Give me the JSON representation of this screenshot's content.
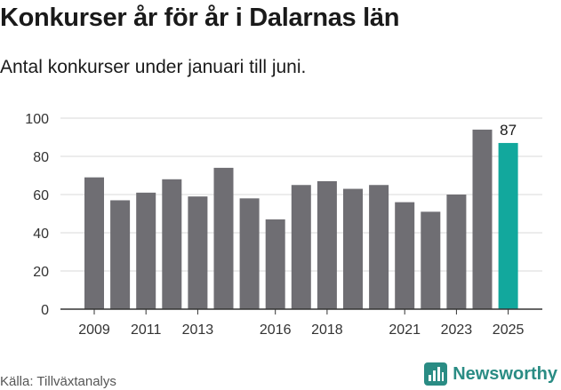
{
  "header": {
    "title": "Konkurser år för år i Dalarnas län",
    "subtitle": "Antal konkurser under januari till juni."
  },
  "footer": {
    "source": "Källa: Tillväxtanalys",
    "brand": "Newsworthy"
  },
  "colors": {
    "bar": "#6f6e73",
    "highlight": "#12a89d",
    "brand": "#2a8c84"
  },
  "icons": {
    "brand_logo": "newsworthy-logo-icon"
  },
  "chart_data": {
    "type": "bar",
    "categories": [
      "2009",
      "2010",
      "2011",
      "2012",
      "2013",
      "2014",
      "2015",
      "2016",
      "2017",
      "2018",
      "2019",
      "2020",
      "2021",
      "2022",
      "2023",
      "2024",
      "2025"
    ],
    "tick_labels": [
      "2009",
      "",
      "2011",
      "",
      "2013",
      "",
      "",
      "2016",
      "",
      "2018",
      "",
      "",
      "2021",
      "",
      "2023",
      "",
      "2025"
    ],
    "values": [
      69,
      57,
      61,
      68,
      59,
      74,
      58,
      47,
      65,
      67,
      63,
      65,
      56,
      51,
      60,
      94,
      87
    ],
    "highlight_index": 16,
    "data_labels": [
      {
        "index": 16,
        "text": "87"
      }
    ],
    "ylim": [
      0,
      100
    ],
    "yticks": [
      0,
      20,
      40,
      60,
      80,
      100
    ],
    "grid": true,
    "xlabel": "",
    "ylabel": ""
  }
}
